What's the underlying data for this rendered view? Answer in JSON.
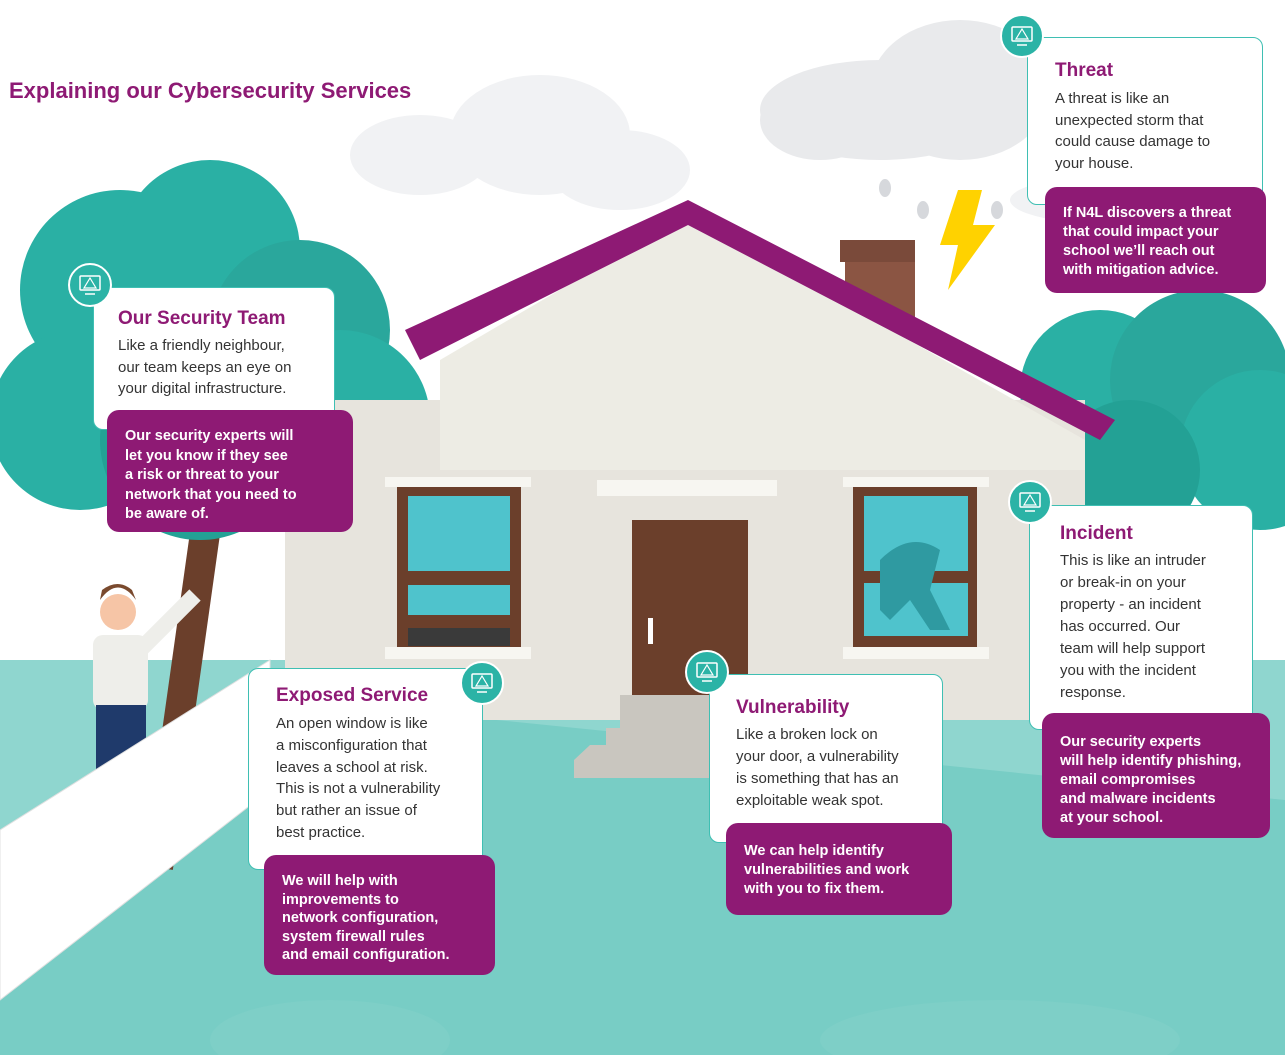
{
  "header": {
    "title": "Explaining our Cybersecurity Services"
  },
  "cards": [
    {
      "title": "Threat",
      "body": [
        "A threat is like an",
        "unexpected storm that",
        "could cause damage to",
        "your house."
      ],
      "callout": [
        "If N4L discovers a threat",
        "that could impact your",
        "school we’ll reach out",
        "with mitigation advice."
      ]
    },
    {
      "title": "Our Security Team",
      "body": [
        "Like a friendly neighbour,",
        "our team keeps an eye on",
        "your digital infrastructure."
      ],
      "callout": [
        "Our security experts will",
        "let you know if they see",
        "a risk or threat to your",
        "network that you need to",
        "be aware of."
      ]
    },
    {
      "title": "Exposed Service",
      "body": [
        "An open window is like",
        "a misconfiguration that",
        "leaves a school at risk.",
        "This is not a vulnerability",
        "but rather an issue of",
        "best practice."
      ],
      "callout": [
        "We will help with",
        "improvements to",
        "network configuration,",
        "system firewall rules",
        "and email configuration."
      ]
    },
    {
      "title": "Vulnerability",
      "body": [
        "Like a broken lock on",
        "your door, a vulnerability",
        "is something that has an",
        "exploitable weak spot."
      ],
      "callout": [
        "We can help identify",
        "vulnerabilities and work",
        "with you to fix them."
      ]
    },
    {
      "title": "Incident",
      "body": [
        "This is like an intruder",
        "or break-in on your",
        "property - an incident",
        "has occurred. Our",
        "team will help support",
        "you with the incident",
        "response."
      ],
      "callout": [
        "Our security experts",
        "will help identify phishing,",
        "email compromises",
        "and malware incidents",
        "at your school."
      ]
    }
  ]
}
